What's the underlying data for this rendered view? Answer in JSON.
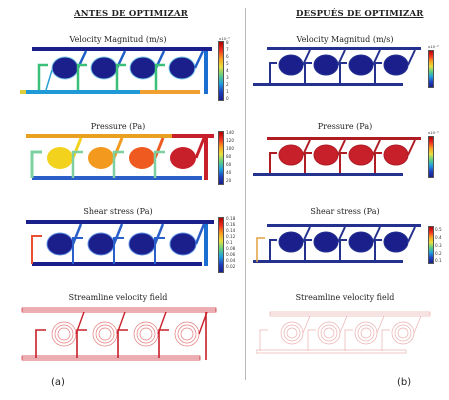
{
  "headers": {
    "left": "ANTES DE OPTIMIZAR",
    "right": "DESPUÉS DE OPTIMIZAR"
  },
  "panel_labels": {
    "left": "(a)",
    "right": "(b)"
  },
  "rows": [
    {
      "title": "Velocity Magnitud (m/s)",
      "left": {
        "scale": "x10⁻³",
        "ticks": [
          "8",
          "7",
          "6",
          "5",
          "4",
          "3",
          "2",
          "1",
          "0"
        ]
      },
      "right": {
        "scale": "x10⁻⁴",
        "ticks": []
      }
    },
    {
      "title": "Pressure (Pa)",
      "left": {
        "scale": "",
        "ticks": [
          "140",
          "120",
          "100",
          "80",
          "60",
          "40",
          "20"
        ]
      },
      "right": {
        "scale": "x10⁻³",
        "ticks": []
      }
    },
    {
      "title": "Shear stress (Pa)",
      "left": {
        "scale": "",
        "ticks": [
          "0.18",
          "0.16",
          "0.14",
          "0.12",
          "0.1",
          "0.08",
          "0.06",
          "0.04",
          "0.02"
        ]
      },
      "right": {
        "scale": "",
        "ticks": [
          "0.5",
          "0.4",
          "0.3",
          "0.2",
          "0.1"
        ]
      }
    },
    {
      "title": "Streamline velocity field",
      "left": {
        "scale": "",
        "ticks": []
      },
      "right": {
        "scale": "",
        "ticks": []
      }
    }
  ],
  "colors": {
    "deep_blue": "#1a1f8c",
    "navy": "#24318f",
    "red": "#c8202a",
    "dark_red": "#b01c24",
    "yellow": "#f2d21c",
    "orange": "#f39a1e",
    "orange_red": "#ee5a20",
    "light_red": "#e47a7a",
    "faint_red": "#eab0b0"
  }
}
